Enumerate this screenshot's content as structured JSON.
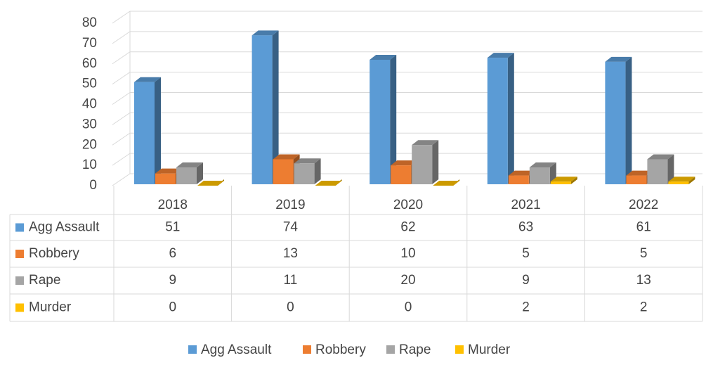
{
  "chart_data": {
    "type": "bar",
    "categories": [
      "2018",
      "2019",
      "2020",
      "2021",
      "2022"
    ],
    "series": [
      {
        "name": "Agg Assault",
        "color": "#5b9bd5",
        "values": [
          51,
          74,
          62,
          63,
          61
        ]
      },
      {
        "name": "Robbery",
        "color": "#ed7d31",
        "values": [
          6,
          13,
          10,
          5,
          5
        ]
      },
      {
        "name": "Rape",
        "color": "#a5a5a5",
        "values": [
          9,
          11,
          20,
          9,
          13
        ]
      },
      {
        "name": "Murder",
        "color": "#ffc000",
        "values": [
          0,
          0,
          0,
          2,
          2
        ]
      }
    ],
    "ylim": [
      0,
      80
    ],
    "yticks": [
      0,
      10,
      20,
      30,
      40,
      50,
      60,
      70,
      80
    ],
    "grid": true,
    "legend": "bottom"
  }
}
